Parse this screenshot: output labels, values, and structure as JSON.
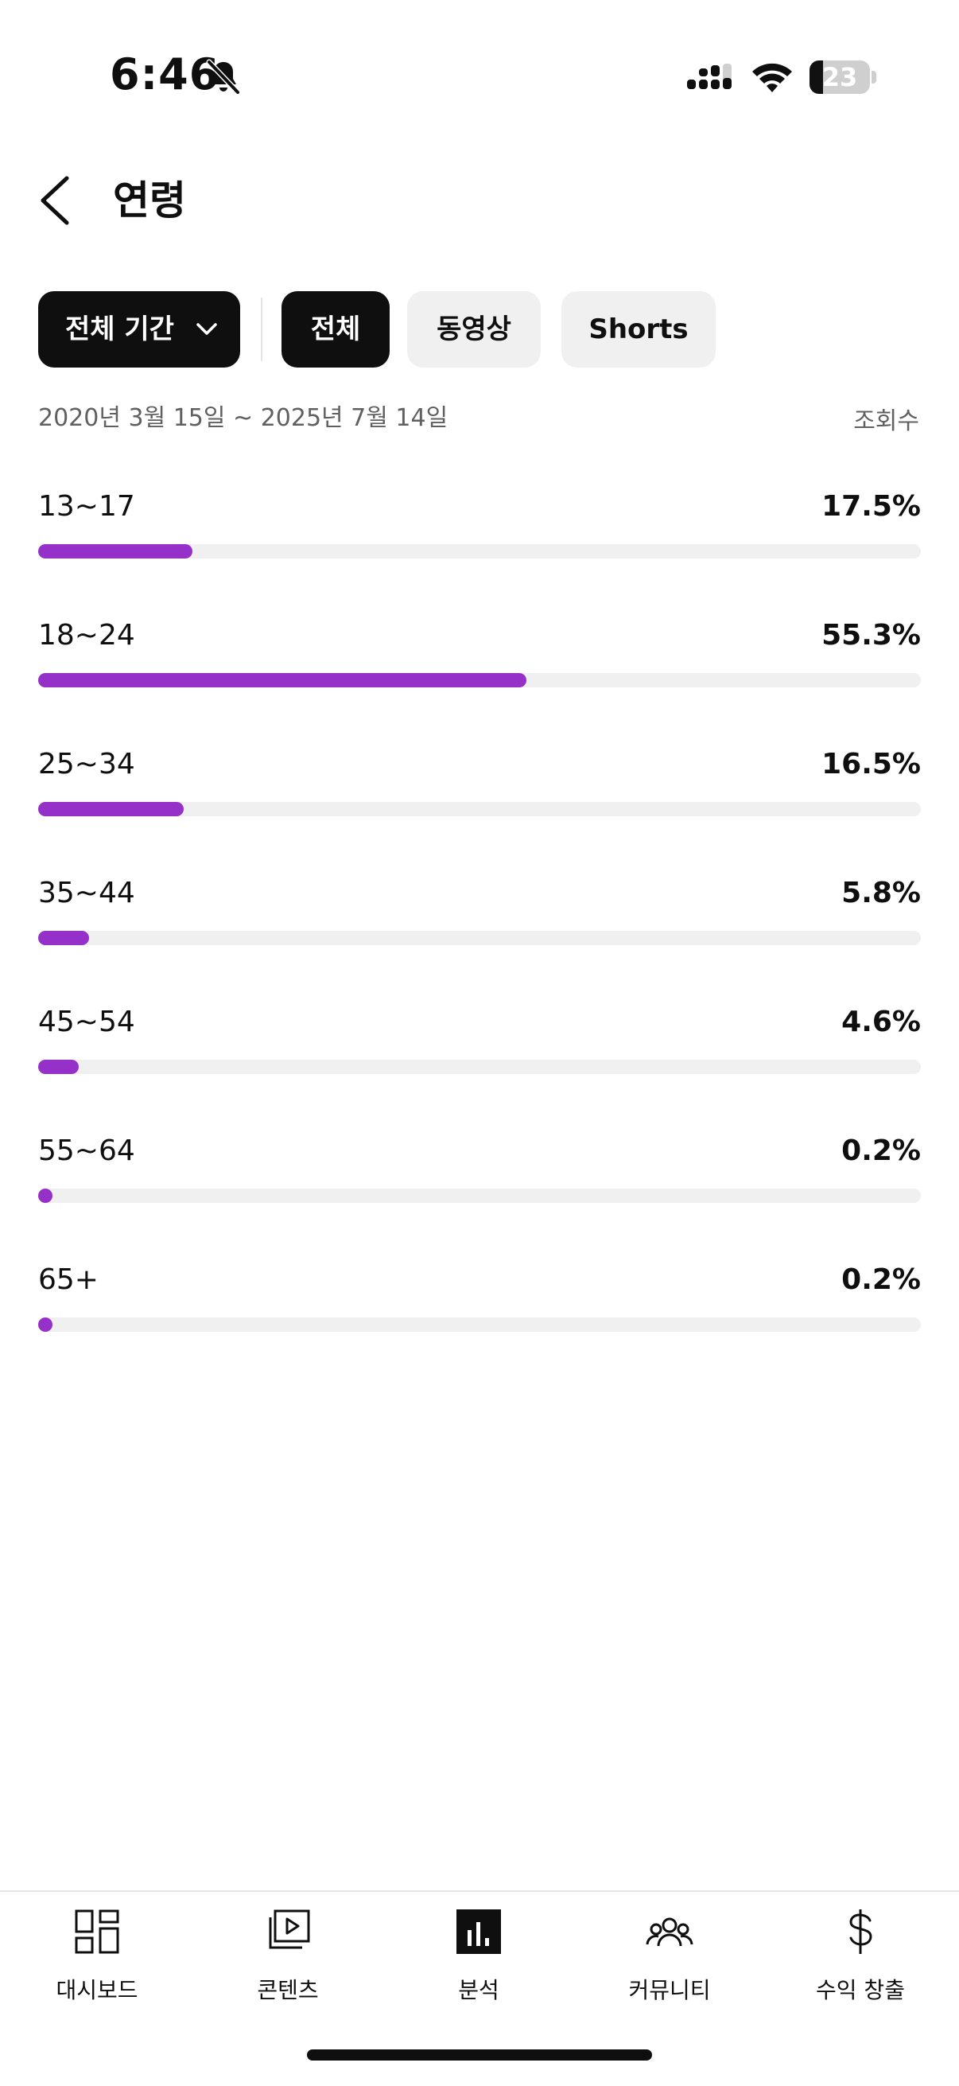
{
  "status_bar": {
    "time": "6:46",
    "battery_level": "23",
    "battery_percent": 23,
    "icons": [
      "bell-off-icon",
      "signal-icon",
      "wifi-icon",
      "battery-icon"
    ]
  },
  "header": {
    "back_icon": "chevron-left-icon",
    "title": "연령"
  },
  "filters": {
    "period_label": "전체 기간",
    "period_icon": "chevron-down-icon",
    "types": [
      "전체",
      "동영상",
      "Shorts"
    ],
    "selected_type": "전체"
  },
  "date_range": "2020년 3월 15일 ~ 2025년 7월 14일",
  "metric_label": "조회수",
  "accent_color": "#9530c9",
  "age_groups": [
    {
      "label": "13~17",
      "value": "17.5%",
      "percent": 17.5
    },
    {
      "label": "18~24",
      "value": "55.3%",
      "percent": 55.3
    },
    {
      "label": "25~34",
      "value": "16.5%",
      "percent": 16.5
    },
    {
      "label": "35~44",
      "value": "5.8%",
      "percent": 5.8
    },
    {
      "label": "45~54",
      "value": "4.6%",
      "percent": 4.6
    },
    {
      "label": "55~64",
      "value": "0.2%",
      "percent": 0.2
    },
    {
      "label": "65+",
      "value": "0.2%",
      "percent": 0.2
    }
  ],
  "bottom_nav": [
    {
      "label": "대시보드",
      "icon": "dashboard-icon",
      "active": false
    },
    {
      "label": "콘텐츠",
      "icon": "content-icon",
      "active": false
    },
    {
      "label": "분석",
      "icon": "analytics-icon",
      "active": true
    },
    {
      "label": "커뮤니티",
      "icon": "community-icon",
      "active": false
    },
    {
      "label": "수익 창출",
      "icon": "dollar-icon",
      "active": false
    }
  ]
}
